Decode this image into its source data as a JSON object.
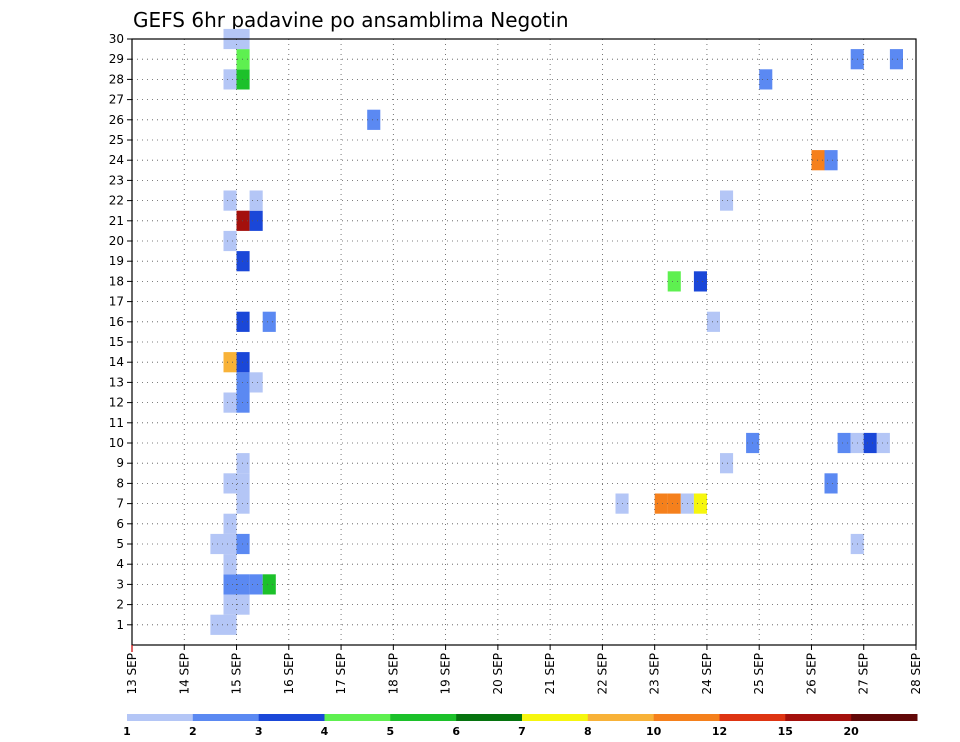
{
  "chart_data": {
    "type": "heatmap",
    "title": "GEFS 6hr padavine po ansamblima Negotin",
    "x_labels": [
      "13 SEP",
      "14 SEP",
      "15 SEP",
      "16 SEP",
      "17 SEP",
      "18 SEP",
      "19 SEP",
      "20 SEP",
      "21 SEP",
      "22 SEP",
      "23 SEP",
      "24 SEP",
      "25 SEP",
      "26 SEP",
      "27 SEP",
      "28 SEP"
    ],
    "x_range_days": [
      13,
      28
    ],
    "y_labels": [
      "1",
      "2",
      "3",
      "4",
      "5",
      "6",
      "7",
      "8",
      "9",
      "10",
      "11",
      "12",
      "13",
      "14",
      "15",
      "16",
      "17",
      "18",
      "19",
      "20",
      "21",
      "22",
      "23",
      "24",
      "25",
      "26",
      "27",
      "28",
      "29",
      "30"
    ],
    "y_range": [
      0,
      30
    ],
    "grid": true,
    "legend": {
      "placement": "bottom",
      "labels": [
        "1",
        "2",
        "3",
        "4",
        "5",
        "6",
        "7",
        "8",
        "10",
        "12",
        "15",
        "20"
      ],
      "colors": [
        "#b4c6f6",
        "#5b89f2",
        "#1a47d8",
        "#5ef050",
        "#1cc12a",
        "#06740f",
        "#f6f60e",
        "#f8b238",
        "#f5801c",
        "#de3412",
        "#a4100c",
        "#620808"
      ]
    },
    "cells": [
      {
        "member": 1,
        "day": 14.625,
        "level": 1
      },
      {
        "member": 1,
        "day": 14.875,
        "level": 1
      },
      {
        "member": 2,
        "day": 14.875,
        "level": 1
      },
      {
        "member": 2,
        "day": 15.125,
        "level": 1
      },
      {
        "member": 3,
        "day": 14.875,
        "level": 2
      },
      {
        "member": 3,
        "day": 15.125,
        "level": 2
      },
      {
        "member": 3,
        "day": 15.375,
        "level": 2
      },
      {
        "member": 3,
        "day": 15.625,
        "level": 5
      },
      {
        "member": 4,
        "day": 14.875,
        "level": 1
      },
      {
        "member": 5,
        "day": 14.625,
        "level": 1
      },
      {
        "member": 5,
        "day": 14.875,
        "level": 1
      },
      {
        "member": 5,
        "day": 15.125,
        "level": 2
      },
      {
        "member": 5,
        "day": 26.875,
        "level": 1
      },
      {
        "member": 6,
        "day": 14.875,
        "level": 1
      },
      {
        "member": 7,
        "day": 15.125,
        "level": 1
      },
      {
        "member": 7,
        "day": 22.375,
        "level": 1
      },
      {
        "member": 7,
        "day": 23.125,
        "level": 10
      },
      {
        "member": 7,
        "day": 23.375,
        "level": 10
      },
      {
        "member": 7,
        "day": 23.625,
        "level": 1
      },
      {
        "member": 7,
        "day": 23.875,
        "level": 7
      },
      {
        "member": 8,
        "day": 14.875,
        "level": 1
      },
      {
        "member": 8,
        "day": 15.125,
        "level": 1
      },
      {
        "member": 8,
        "day": 26.375,
        "level": 2
      },
      {
        "member": 9,
        "day": 15.125,
        "level": 1
      },
      {
        "member": 9,
        "day": 24.375,
        "level": 1
      },
      {
        "member": 10,
        "day": 24.875,
        "level": 2
      },
      {
        "member": 10,
        "day": 26.625,
        "level": 2
      },
      {
        "member": 10,
        "day": 26.875,
        "level": 1
      },
      {
        "member": 10,
        "day": 27.125,
        "level": 3
      },
      {
        "member": 10,
        "day": 27.375,
        "level": 1
      },
      {
        "member": 12,
        "day": 14.875,
        "level": 1
      },
      {
        "member": 12,
        "day": 15.125,
        "level": 2
      },
      {
        "member": 13,
        "day": 15.125,
        "level": 2
      },
      {
        "member": 13,
        "day": 15.375,
        "level": 1
      },
      {
        "member": 14,
        "day": 15.125,
        "level": 3
      },
      {
        "member": 14,
        "day": 14.875,
        "level": 8
      },
      {
        "member": 16,
        "day": 15.125,
        "level": 3
      },
      {
        "member": 16,
        "day": 15.625,
        "level": 2
      },
      {
        "member": 16,
        "day": 24.125,
        "level": 1
      },
      {
        "member": 18,
        "day": 23.875,
        "level": 3
      },
      {
        "member": 18,
        "day": 23.375,
        "level": 4
      },
      {
        "member": 19,
        "day": 15.125,
        "level": 3
      },
      {
        "member": 20,
        "day": 14.875,
        "level": 1
      },
      {
        "member": 21,
        "day": 15.125,
        "level": 15
      },
      {
        "member": 21,
        "day": 15.375,
        "level": 3
      },
      {
        "member": 22,
        "day": 14.875,
        "level": 1
      },
      {
        "member": 22,
        "day": 15.375,
        "level": 1
      },
      {
        "member": 22,
        "day": 24.375,
        "level": 1
      },
      {
        "member": 24,
        "day": 26.125,
        "level": 10
      },
      {
        "member": 24,
        "day": 26.375,
        "level": 2
      },
      {
        "member": 26,
        "day": 17.625,
        "level": 2
      },
      {
        "member": 28,
        "day": 14.875,
        "level": 1
      },
      {
        "member": 28,
        "day": 15.125,
        "level": 5
      },
      {
        "member": 28,
        "day": 25.125,
        "level": 2
      },
      {
        "member": 29,
        "day": 15.125,
        "level": 4
      },
      {
        "member": 29,
        "day": 26.875,
        "level": 2
      },
      {
        "member": 29,
        "day": 27.625,
        "level": 2
      },
      {
        "member": 30,
        "day": 14.875,
        "level": 1
      },
      {
        "member": 30,
        "day": 15.125,
        "level": 1
      }
    ]
  }
}
